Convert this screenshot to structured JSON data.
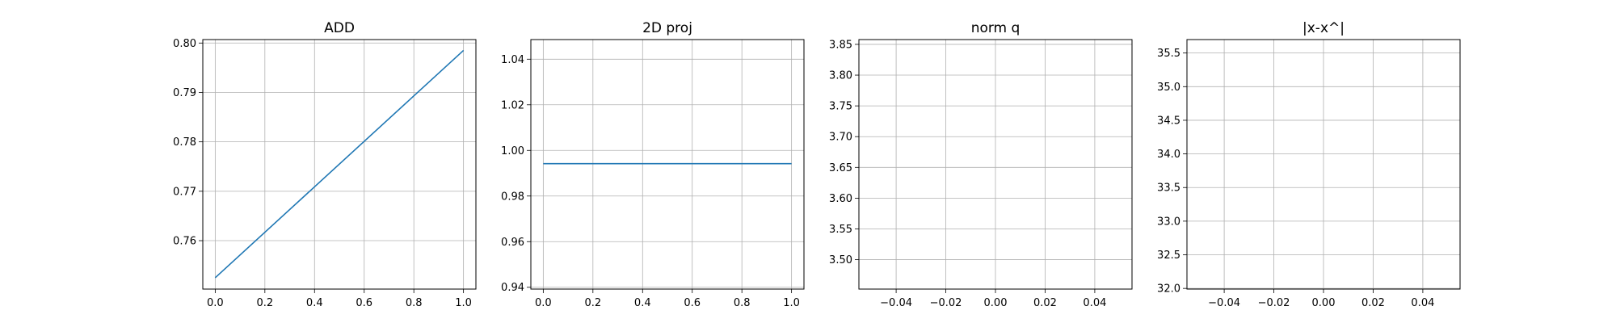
{
  "figure": {
    "background": "#ffffff",
    "grid_color": "#b0b0b0",
    "line_color": "#1f77b4"
  },
  "chart_data": [
    {
      "type": "line",
      "title": "ADD",
      "xlim": [
        -0.05,
        1.05
      ],
      "ylim": [
        0.7502,
        0.8007
      ],
      "xticks": [
        0.0,
        0.2,
        0.4,
        0.6,
        0.8,
        1.0
      ],
      "xtick_labels": [
        "0.0",
        "0.2",
        "0.4",
        "0.6",
        "0.8",
        "1.0"
      ],
      "yticks": [
        0.76,
        0.77,
        0.78,
        0.79,
        0.8
      ],
      "ytick_labels": [
        "0.76",
        "0.77",
        "0.78",
        "0.79",
        "0.80"
      ],
      "grid": true,
      "series": [
        {
          "x": [
            0.0,
            1.0
          ],
          "y": [
            0.7525,
            0.7985
          ],
          "color": "#1f77b4"
        }
      ]
    },
    {
      "type": "line",
      "title": "2D proj",
      "xlim": [
        -0.05,
        1.05
      ],
      "ylim": [
        0.9392,
        1.0486
      ],
      "xticks": [
        0.0,
        0.2,
        0.4,
        0.6,
        0.8,
        1.0
      ],
      "xtick_labels": [
        "0.0",
        "0.2",
        "0.4",
        "0.6",
        "0.8",
        "1.0"
      ],
      "yticks": [
        0.94,
        0.96,
        0.98,
        1.0,
        1.02,
        1.04
      ],
      "ytick_labels": [
        "0.94",
        "0.96",
        "0.98",
        "1.00",
        "1.02",
        "1.04"
      ],
      "grid": true,
      "series": [
        {
          "x": [
            0.0,
            1.0
          ],
          "y": [
            0.9942,
            0.9942
          ],
          "color": "#1f77b4"
        }
      ]
    },
    {
      "type": "line",
      "title": "norm q",
      "xlim": [
        -0.055,
        0.055
      ],
      "ylim": [
        3.4522,
        3.8578
      ],
      "xticks": [
        -0.04,
        -0.02,
        0.0,
        0.02,
        0.04
      ],
      "xtick_labels": [
        "−0.04",
        "−0.02",
        "0.00",
        "0.02",
        "0.04"
      ],
      "yticks": [
        3.5,
        3.55,
        3.6,
        3.65,
        3.7,
        3.75,
        3.8,
        3.85
      ],
      "ytick_labels": [
        "3.50",
        "3.55",
        "3.60",
        "3.65",
        "3.70",
        "3.75",
        "3.80",
        "3.85"
      ],
      "grid": true,
      "series": []
    },
    {
      "type": "line",
      "title": "|x-x^|",
      "xlim": [
        -0.055,
        0.055
      ],
      "ylim": [
        31.99,
        35.7
      ],
      "xticks": [
        -0.04,
        -0.02,
        0.0,
        0.02,
        0.04
      ],
      "xtick_labels": [
        "−0.04",
        "−0.02",
        "0.00",
        "0.02",
        "0.04"
      ],
      "yticks": [
        32.0,
        32.5,
        33.0,
        33.5,
        34.0,
        34.5,
        35.0,
        35.5
      ],
      "ytick_labels": [
        "32.0",
        "32.5",
        "33.0",
        "33.5",
        "34.0",
        "34.5",
        "35.0",
        "35.5"
      ],
      "grid": true,
      "series": []
    }
  ]
}
